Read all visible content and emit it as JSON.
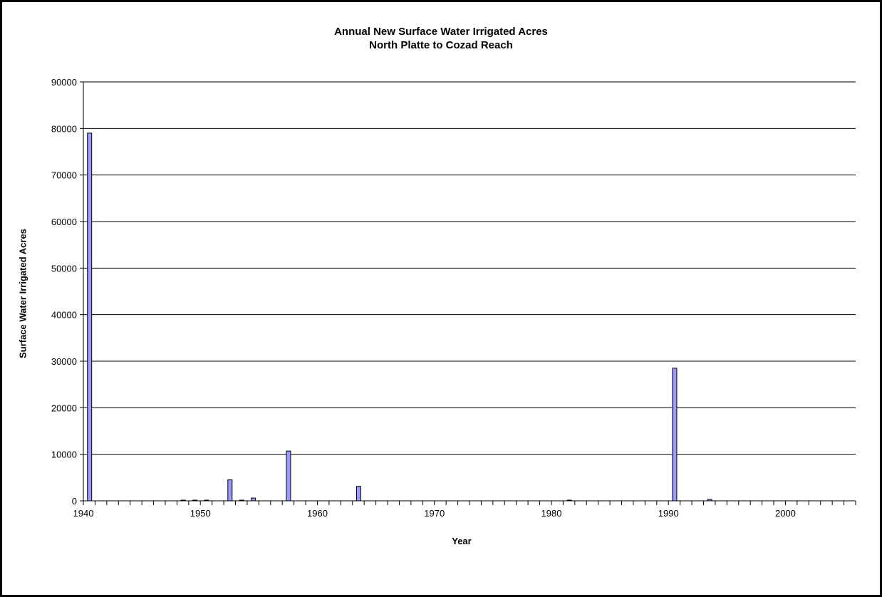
{
  "chart_data": {
    "type": "bar",
    "title": "Annual New Surface Water Irrigated Acres",
    "subtitle": "North Platte to Cozad Reach",
    "xlabel": "Year",
    "ylabel": "Surface Water Irrigated Acres",
    "xlim": [
      1940,
      2006
    ],
    "ylim": [
      0,
      90000
    ],
    "y_ticks": [
      0,
      10000,
      20000,
      30000,
      40000,
      50000,
      60000,
      70000,
      80000,
      90000
    ],
    "x_ticks": [
      1940,
      1950,
      1960,
      1970,
      1980,
      1990,
      2000
    ],
    "grid": true,
    "legend": "none",
    "bar_color": "#9999ff",
    "x": [
      1941,
      1949,
      1950,
      1951,
      1953,
      1954,
      1955,
      1958,
      1964,
      1982,
      1991,
      1994
    ],
    "values": [
      79000,
      80,
      100,
      120,
      4500,
      150,
      600,
      10700,
      3100,
      80,
      28500,
      300
    ]
  }
}
